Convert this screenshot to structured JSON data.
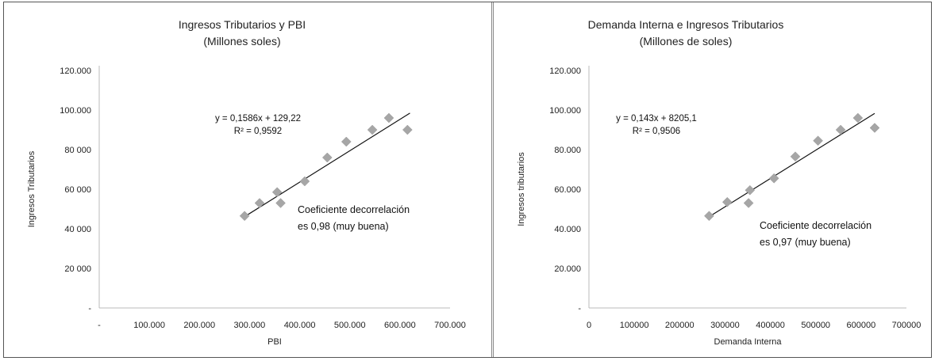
{
  "chart_data": [
    {
      "type": "scatter",
      "title": [
        "Ingresos Tributarios y PBI",
        "(Millones soles)"
      ],
      "xlabel": "PBI",
      "ylabel": "Ingresos Tributarios",
      "xlim": [
        0,
        700000
      ],
      "ylim": [
        0,
        120000
      ],
      "xticks": [
        0,
        100000,
        200000,
        300000,
        400000,
        500000,
        600000,
        700000
      ],
      "xtick_labels": [
        "-",
        "100.000",
        "200.000",
        "300.000",
        "400.000",
        "500.000",
        "600.000",
        "700.000"
      ],
      "yticks": [
        0,
        20000,
        40000,
        60000,
        80000,
        100000,
        120000
      ],
      "ytick_labels": [
        "-",
        "20 000",
        "40 000",
        "60 000",
        "80 000",
        "100.000",
        "120.000"
      ],
      "points": [
        {
          "x": 290000,
          "y": 46500
        },
        {
          "x": 320000,
          "y": 53000
        },
        {
          "x": 355000,
          "y": 58500
        },
        {
          "x": 362000,
          "y": 53000
        },
        {
          "x": 410000,
          "y": 64000
        },
        {
          "x": 455000,
          "y": 76000
        },
        {
          "x": 493000,
          "y": 84000
        },
        {
          "x": 545000,
          "y": 90000
        },
        {
          "x": 578000,
          "y": 96000
        },
        {
          "x": 615000,
          "y": 90000
        }
      ],
      "trendline": {
        "slope": 0.1586,
        "intercept": 129.22,
        "x_range": [
          290000,
          620000
        ]
      },
      "equation": "y = 0,1586x + 129,22",
      "r_squared": "R² = 0,9592",
      "annotation": [
        "Coeficiente decorrelación",
        "es 0,98 (muy buena)"
      ],
      "grid": false,
      "color": "#a6a6a6"
    },
    {
      "type": "scatter",
      "title": [
        "Demanda Interna e Ingresos Tributarios",
        "(Millones de soles)"
      ],
      "xlabel": "Demanda Interna",
      "ylabel": "Ingresos tributarios",
      "xlim": [
        0,
        700000
      ],
      "ylim": [
        0,
        120000
      ],
      "xticks": [
        0,
        100000,
        200000,
        300000,
        400000,
        500000,
        600000,
        700000
      ],
      "xtick_labels": [
        "0",
        "100000",
        "200000",
        "300000",
        "400000",
        "500000",
        "600000",
        "700000"
      ],
      "yticks": [
        0,
        20000,
        40000,
        60000,
        80000,
        100000,
        120000
      ],
      "ytick_labels": [
        "-",
        "20.000",
        "40.000",
        "60.000",
        "80.000",
        "100.000",
        "120.000"
      ],
      "points": [
        {
          "x": 265000,
          "y": 46500
        },
        {
          "x": 305000,
          "y": 53500
        },
        {
          "x": 352000,
          "y": 53000
        },
        {
          "x": 355000,
          "y": 59500
        },
        {
          "x": 408000,
          "y": 65500
        },
        {
          "x": 455000,
          "y": 76500
        },
        {
          "x": 505000,
          "y": 84500
        },
        {
          "x": 555000,
          "y": 90000
        },
        {
          "x": 593000,
          "y": 96000
        },
        {
          "x": 630000,
          "y": 91000
        }
      ],
      "trendline": {
        "slope": 0.143,
        "intercept": 8205.1,
        "x_range": [
          265000,
          630000
        ]
      },
      "equation": "y = 0,143x + 8205,1",
      "r_squared": "R² = 0,9506",
      "annotation": [
        "Coeficiente decorrelación",
        "es 0,97 (muy buena)"
      ],
      "grid": false,
      "color": "#a6a6a6"
    }
  ]
}
